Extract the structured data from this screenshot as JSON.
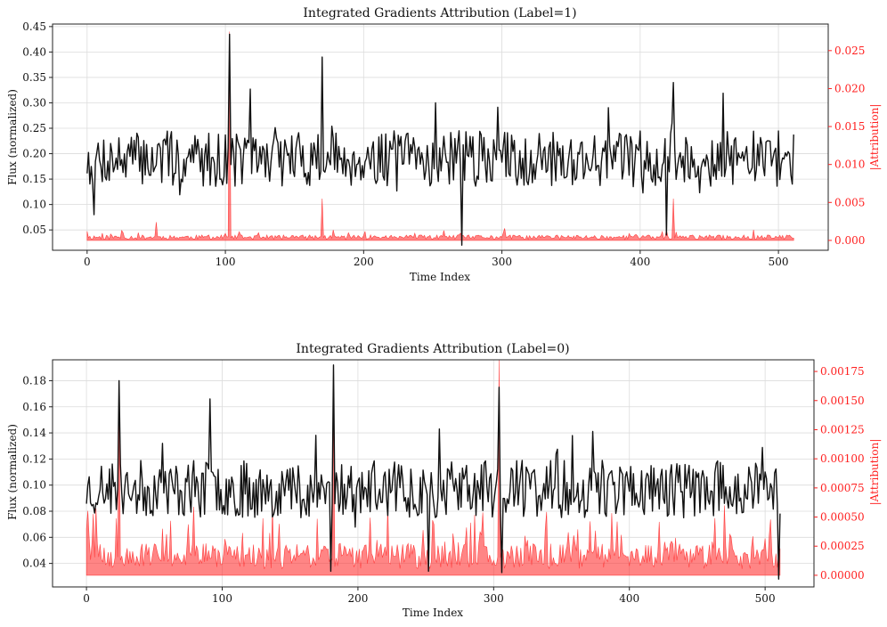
{
  "chart_data": [
    {
      "type": "line",
      "title": "Integrated Gradients Attribution (Label=1)",
      "xlabel": "Time Index",
      "ylabel": "Flux (normalized)",
      "ylabel_right": "|Attribution|",
      "x_range": [
        0,
        511
      ],
      "xlim": [
        -25,
        536
      ],
      "ylim": [
        0.01,
        0.455
      ],
      "ylim_right": [
        -0.0013,
        0.0285
      ],
      "xticks": [
        0,
        100,
        200,
        300,
        400,
        500
      ],
      "yticks": [
        0.05,
        0.1,
        0.15,
        0.2,
        0.25,
        0.3,
        0.35,
        0.4,
        0.45
      ],
      "yticks_right": [
        0.0,
        0.005,
        0.01,
        0.015,
        0.02,
        0.025
      ],
      "ytick_labels": [
        "0.05",
        "0.10",
        "0.15",
        "0.20",
        "0.25",
        "0.30",
        "0.35",
        "0.40",
        "0.45"
      ],
      "ytick_right_labels": [
        "0.000",
        "0.005",
        "0.010",
        "0.015",
        "0.020",
        "0.025"
      ],
      "grid": true,
      "flux": {
        "color": "#111111",
        "seed": 7,
        "baseline": 0.19,
        "noise_amplitude": 0.055,
        "spike_amplitude": 0.125,
        "spike_prob": 0.04,
        "min": 0.06,
        "max": 0.33,
        "peaks": [
          {
            "x": 103,
            "y": 0.435
          },
          {
            "x": 170,
            "y": 0.39
          },
          {
            "x": 424,
            "y": 0.34
          },
          {
            "x": 252,
            "y": 0.3
          }
        ],
        "dips": [
          {
            "x": 271,
            "y": 0.02
          },
          {
            "x": 419,
            "y": 0.04
          },
          {
            "x": 170,
            "y": 0.03
          },
          {
            "x": 5,
            "y": 0.08
          }
        ]
      },
      "attribution": {
        "color": "#ff2020",
        "fill_opacity": 0.55,
        "seed": 11,
        "base": 0.0004,
        "noise_amplitude": 0.0006,
        "spike_prob": 0.06,
        "spike_amplitude": 0.0012,
        "peaks": [
          {
            "x": 103,
            "y": 0.0275
          },
          {
            "x": 170,
            "y": 0.0055
          },
          {
            "x": 424,
            "y": 0.0055
          },
          {
            "x": 0,
            "y": 0.0012
          },
          {
            "x": 50,
            "y": 0.0024
          }
        ]
      }
    },
    {
      "type": "line",
      "title": "Integrated Gradients Attribution (Label=0)",
      "xlabel": "Time Index",
      "ylabel": "Flux (normalized)",
      "ylabel_right": "|Attribution|",
      "x_range": [
        0,
        511
      ],
      "xlim": [
        -25,
        536
      ],
      "ylim": [
        0.022,
        0.196
      ],
      "ylim_right": [
        -0.0001,
        0.00185
      ],
      "xticks": [
        0,
        100,
        200,
        300,
        400,
        500
      ],
      "yticks": [
        0.04,
        0.06,
        0.08,
        0.1,
        0.12,
        0.14,
        0.16,
        0.18
      ],
      "yticks_right": [
        0.0,
        0.00025,
        0.0005,
        0.00075,
        0.001,
        0.00125,
        0.0015,
        0.00175
      ],
      "ytick_labels": [
        "0.04",
        "0.06",
        "0.08",
        "0.10",
        "0.12",
        "0.14",
        "0.16",
        "0.18"
      ],
      "ytick_right_labels": [
        "0.00000",
        "0.00025",
        "0.00050",
        "0.00075",
        "0.00100",
        "0.00125",
        "0.00150",
        "0.00175"
      ],
      "grid": true,
      "flux": {
        "color": "#111111",
        "seed": 23,
        "baseline": 0.097,
        "noise_amplitude": 0.022,
        "spike_amplitude": 0.045,
        "spike_prob": 0.06,
        "min": 0.035,
        "max": 0.16,
        "peaks": [
          {
            "x": 182,
            "y": 0.192
          },
          {
            "x": 24,
            "y": 0.18
          },
          {
            "x": 304,
            "y": 0.175
          },
          {
            "x": 91,
            "y": 0.166
          }
        ],
        "dips": [
          {
            "x": 180,
            "y": 0.034
          },
          {
            "x": 252,
            "y": 0.034
          },
          {
            "x": 306,
            "y": 0.033
          },
          {
            "x": 510,
            "y": 0.028
          }
        ]
      },
      "attribution": {
        "color": "#ff2020",
        "fill_opacity": 0.55,
        "seed": 31,
        "base": 0.00018,
        "noise_amplitude": 0.00022,
        "spike_prob": 0.15,
        "spike_amplitude": 0.0004,
        "peaks": [
          {
            "x": 24,
            "y": 0.0016
          },
          {
            "x": 182,
            "y": 0.00165
          },
          {
            "x": 304,
            "y": 0.00185
          },
          {
            "x": 137,
            "y": 0.0006
          },
          {
            "x": 222,
            "y": 0.0006
          },
          {
            "x": 470,
            "y": 0.0006
          },
          {
            "x": 0,
            "y": 0.0004
          }
        ]
      }
    }
  ]
}
